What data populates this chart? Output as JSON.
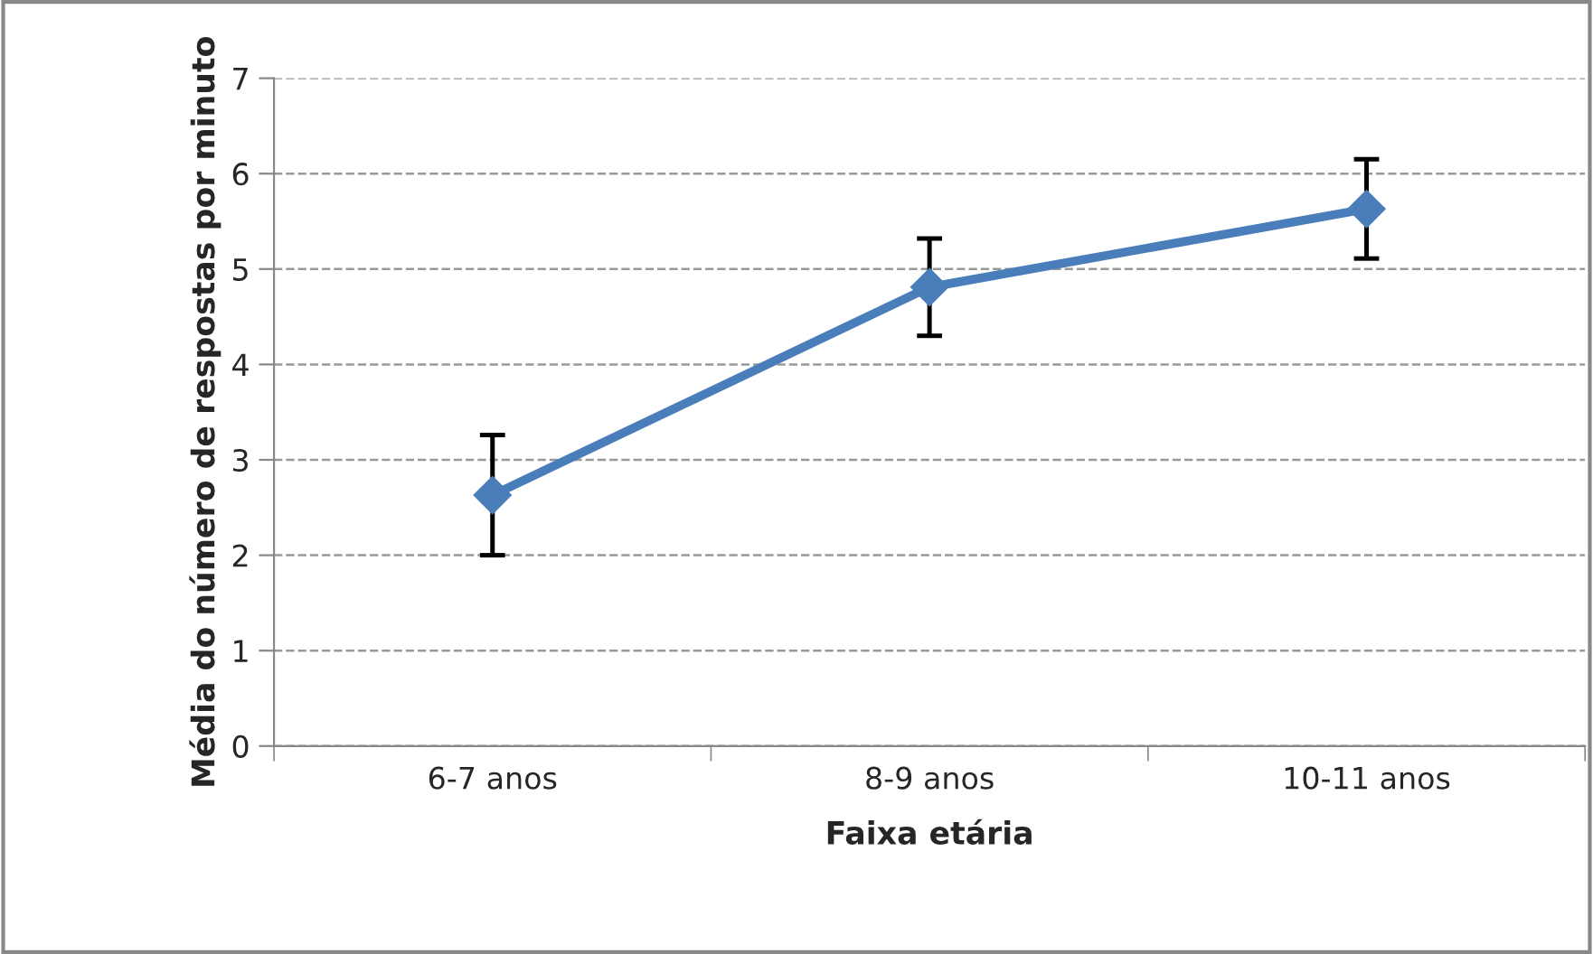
{
  "chart_data": {
    "type": "line",
    "xlabel": "Faixa etária",
    "ylabel": "Média do número de respostas por minuto",
    "categories": [
      "6-7 anos",
      "8-9 anos",
      "10-11 anos"
    ],
    "series": [
      {
        "color": "#4a7ebb",
        "values": [
          2.63,
          4.81,
          5.63
        ],
        "errors": [
          0.63,
          0.51,
          0.52
        ]
      }
    ],
    "ylim": [
      0,
      7
    ],
    "yticks": [
      0,
      1,
      2,
      3,
      4,
      5,
      6,
      7
    ],
    "grid": "y",
    "marker": "diamond",
    "line_style": "solid",
    "legend": false
  }
}
